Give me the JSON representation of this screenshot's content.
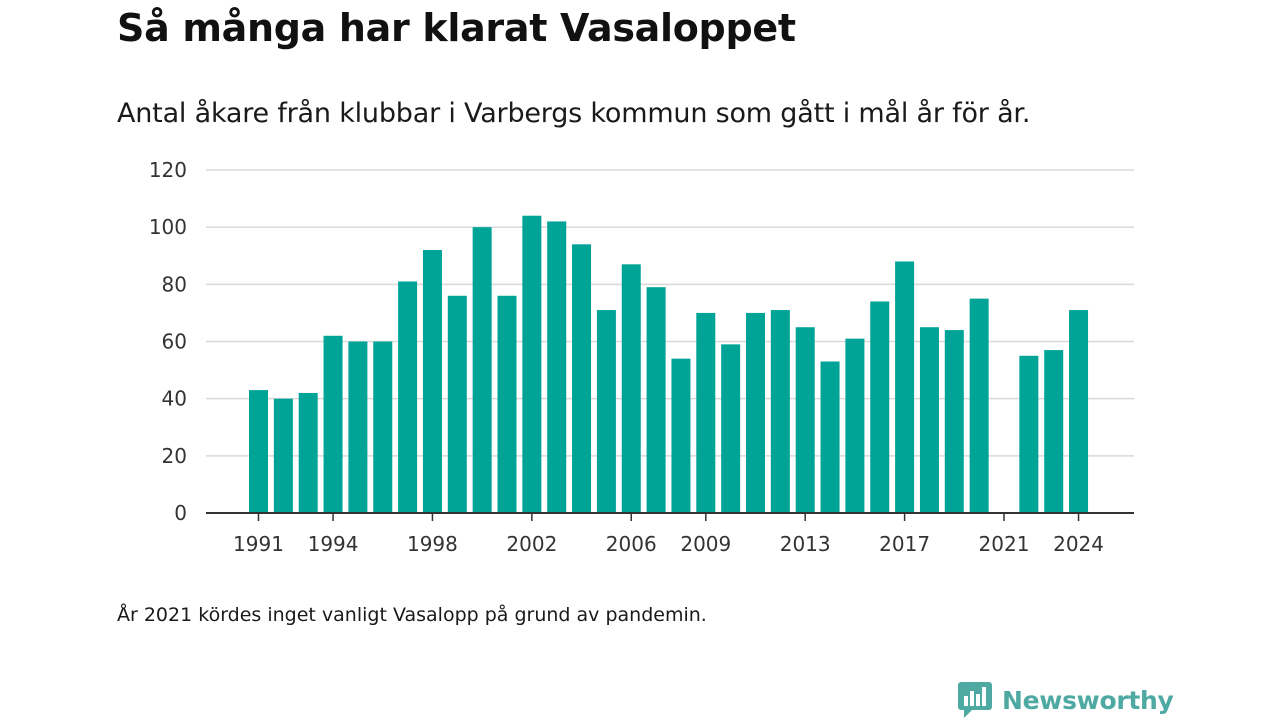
{
  "header": {
    "title": "Så många har klarat Vasaloppet",
    "subtitle": "Antal åkare från klubbar i Varbergs kommun som gått i mål år för år."
  },
  "footnote": "År 2021 kördes inget vanligt Vasalopp på grund av pandemin.",
  "brand": {
    "name": "Newsworthy",
    "icon": "newsworthy-logo-icon",
    "color": "#4fa9a3"
  },
  "chart_data": {
    "type": "bar",
    "title": "",
    "xlabel": "",
    "ylabel": "",
    "color": "#00a497",
    "grid": true,
    "ylim": [
      0,
      120
    ],
    "yticks": [
      0,
      20,
      40,
      60,
      80,
      100,
      120
    ],
    "xticks": [
      1991,
      1994,
      1998,
      2002,
      2006,
      2009,
      2013,
      2017,
      2021,
      2024
    ],
    "categories": [
      1991,
      1992,
      1993,
      1994,
      1995,
      1996,
      1997,
      1998,
      1999,
      2000,
      2001,
      2002,
      2003,
      2004,
      2005,
      2006,
      2007,
      2008,
      2009,
      2010,
      2011,
      2012,
      2013,
      2014,
      2015,
      2016,
      2017,
      2018,
      2019,
      2020,
      2021,
      2022,
      2023,
      2024
    ],
    "values": [
      43,
      40,
      42,
      62,
      60,
      60,
      81,
      92,
      76,
      100,
      76,
      104,
      102,
      94,
      71,
      87,
      79,
      54,
      70,
      59,
      70,
      71,
      65,
      53,
      61,
      74,
      88,
      65,
      64,
      75,
      null,
      55,
      57,
      71
    ]
  }
}
